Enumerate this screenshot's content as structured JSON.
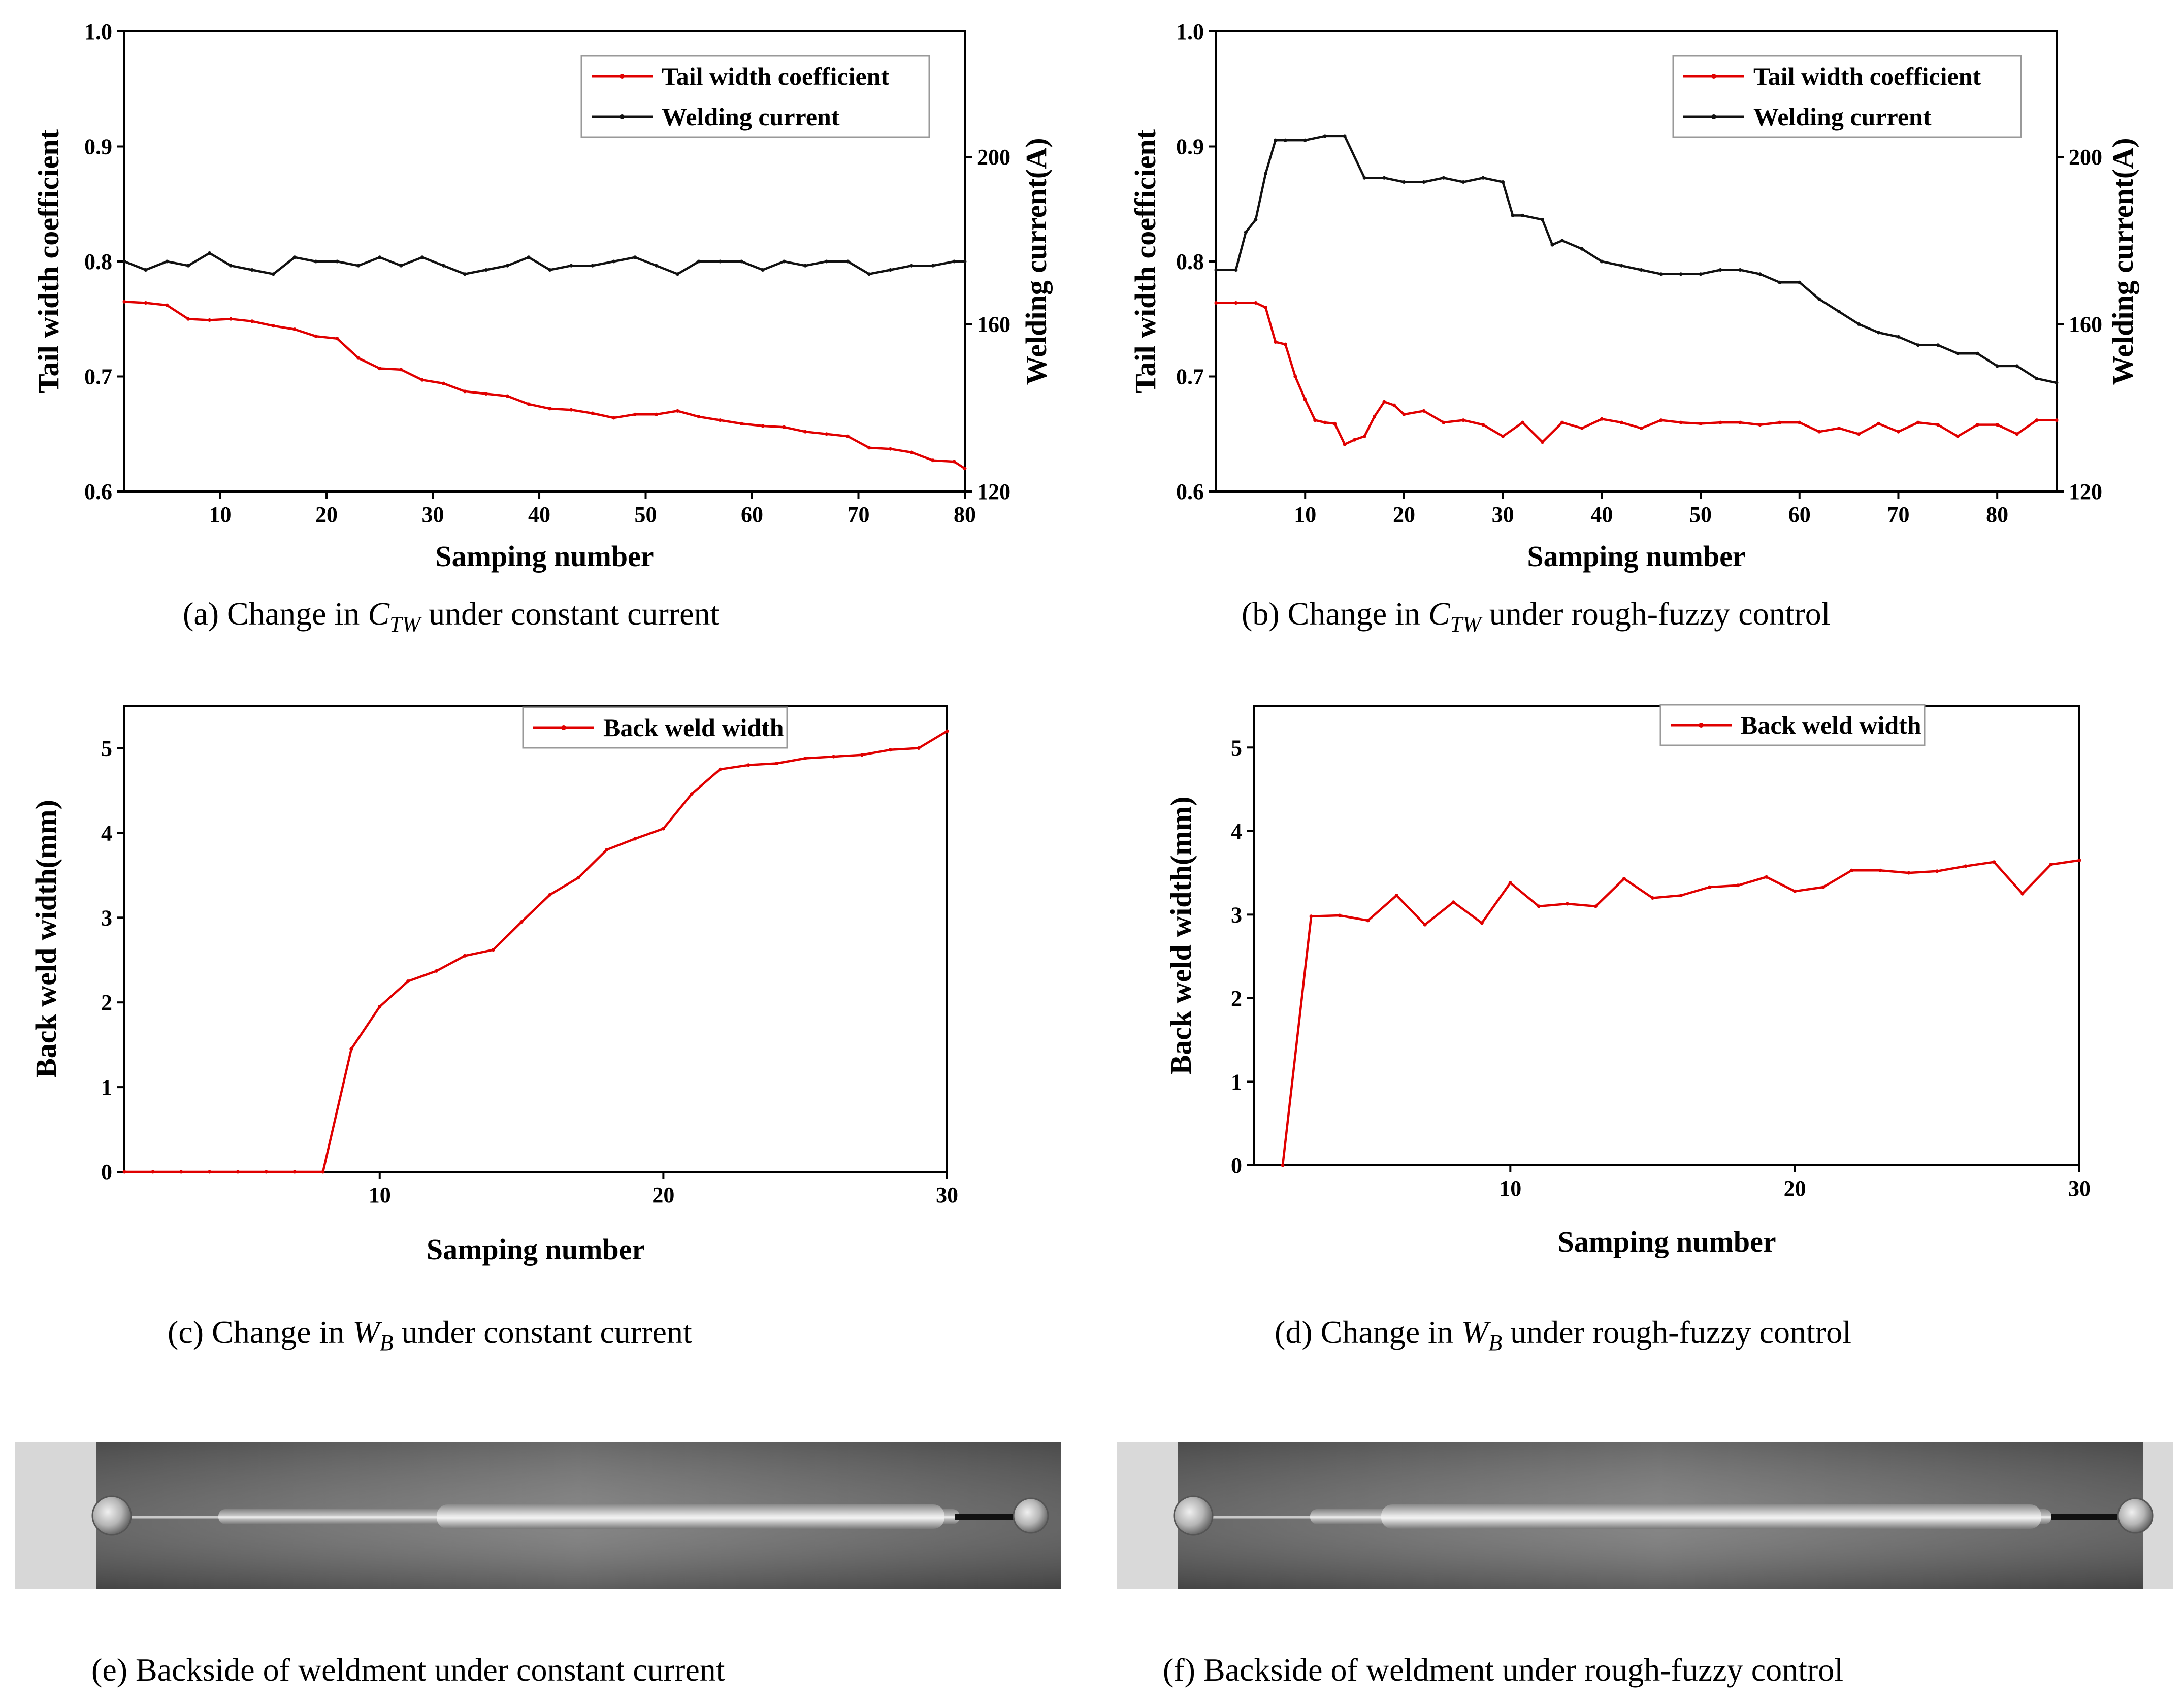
{
  "chart_data": [
    {
      "id": "a",
      "type": "line",
      "caption": {
        "prefix": "(a)  Change in ",
        "symbol": "C",
        "sub": "TW",
        "suffix": "  under constant current"
      },
      "xlabel": "Samping number",
      "ylabel": "Tail width coefficient",
      "y2label": "Welding current(A)",
      "xlim": [
        1,
        80
      ],
      "ylim": [
        0.6,
        1.0
      ],
      "y2lim": [
        120,
        230
      ],
      "xticks": [
        10,
        20,
        30,
        40,
        50,
        60,
        70,
        80
      ],
      "yticks": [
        0.6,
        0.7,
        0.8,
        0.9,
        1.0
      ],
      "yticklabels": [
        "0.6",
        "0.7",
        "0.8",
        "0.9",
        "1.0"
      ],
      "y2ticks": [
        120,
        160,
        200
      ],
      "legend": [
        "Tail width coefficient",
        "Welding current"
      ],
      "series": [
        {
          "name": "Tail width coefficient",
          "axis": "left",
          "color": "#e00000",
          "x": [
            1,
            3,
            5,
            7,
            9,
            11,
            13,
            15,
            17,
            19,
            21,
            23,
            25,
            27,
            29,
            31,
            33,
            35,
            37,
            39,
            41,
            43,
            45,
            47,
            49,
            51,
            53,
            55,
            57,
            59,
            61,
            63,
            65,
            67,
            69,
            71,
            73,
            75,
            77,
            79,
            80
          ],
          "y": [
            0.765,
            0.764,
            0.762,
            0.75,
            0.749,
            0.75,
            0.748,
            0.744,
            0.741,
            0.735,
            0.733,
            0.716,
            0.707,
            0.706,
            0.697,
            0.694,
            0.687,
            0.685,
            0.683,
            0.676,
            0.672,
            0.671,
            0.668,
            0.664,
            0.667,
            0.667,
            0.67,
            0.665,
            0.662,
            0.659,
            0.657,
            0.656,
            0.652,
            0.65,
            0.648,
            0.638,
            0.637,
            0.634,
            0.627,
            0.626,
            0.62
          ]
        },
        {
          "name": "Welding current",
          "axis": "right",
          "color": "#111111",
          "x": [
            1,
            3,
            5,
            7,
            9,
            11,
            13,
            15,
            17,
            19,
            21,
            23,
            25,
            27,
            29,
            31,
            33,
            35,
            37,
            39,
            41,
            43,
            45,
            47,
            49,
            51,
            53,
            55,
            57,
            59,
            61,
            63,
            65,
            67,
            69,
            71,
            73,
            75,
            77,
            79,
            80
          ],
          "y": [
            175,
            173,
            175,
            174,
            177,
            174,
            173,
            172,
            176,
            175,
            175,
            174,
            176,
            174,
            176,
            174,
            172,
            173,
            174,
            176,
            173,
            174,
            174,
            175,
            176,
            174,
            172,
            175,
            175,
            175,
            173,
            175,
            174,
            175,
            175,
            172,
            173,
            174,
            174,
            175,
            175
          ]
        }
      ]
    },
    {
      "id": "b",
      "type": "line",
      "caption": {
        "prefix": "(b)  Change in ",
        "symbol": "C",
        "sub": "TW",
        "suffix": "  under rough-fuzzy control"
      },
      "xlabel": "Samping number",
      "ylabel": "Tail width coefficient",
      "y2label": "Welding current(A)",
      "xlim": [
        1,
        86
      ],
      "ylim": [
        0.6,
        1.0
      ],
      "y2lim": [
        120,
        230
      ],
      "xticks": [
        10,
        20,
        30,
        40,
        50,
        60,
        70,
        80
      ],
      "yticks": [
        0.6,
        0.7,
        0.8,
        0.9,
        1.0
      ],
      "yticklabels": [
        "0.6",
        "0.7",
        "0.8",
        "0.9",
        "1.0"
      ],
      "y2ticks": [
        120,
        160,
        200
      ],
      "legend": [
        "Tail width coefficient",
        "Welding current"
      ],
      "series": [
        {
          "name": "Tail width coefficient",
          "axis": "left",
          "color": "#e00000",
          "x": [
            1,
            3,
            5,
            6,
            7,
            8,
            9,
            10,
            11,
            12,
            13,
            14,
            15,
            16,
            17,
            18,
            19,
            20,
            22,
            24,
            26,
            28,
            30,
            32,
            34,
            36,
            38,
            40,
            42,
            44,
            46,
            48,
            50,
            52,
            54,
            56,
            58,
            60,
            62,
            64,
            66,
            68,
            70,
            72,
            74,
            76,
            78,
            80,
            82,
            84,
            86
          ],
          "y": [
            0.764,
            0.764,
            0.764,
            0.76,
            0.73,
            0.728,
            0.7,
            0.68,
            0.662,
            0.66,
            0.659,
            0.641,
            0.645,
            0.648,
            0.665,
            0.678,
            0.675,
            0.667,
            0.67,
            0.66,
            0.662,
            0.658,
            0.648,
            0.66,
            0.643,
            0.66,
            0.655,
            0.663,
            0.66,
            0.655,
            0.662,
            0.66,
            0.659,
            0.66,
            0.66,
            0.658,
            0.66,
            0.66,
            0.652,
            0.655,
            0.65,
            0.659,
            0.652,
            0.66,
            0.658,
            0.648,
            0.658,
            0.658,
            0.65,
            0.662,
            0.662
          ]
        },
        {
          "name": "Welding current",
          "axis": "right",
          "color": "#111111",
          "x": [
            1,
            3,
            4,
            5,
            6,
            7,
            8,
            10,
            12,
            14,
            16,
            18,
            20,
            22,
            24,
            26,
            28,
            30,
            31,
            32,
            34,
            35,
            36,
            38,
            40,
            42,
            44,
            46,
            48,
            50,
            52,
            54,
            56,
            58,
            60,
            62,
            64,
            66,
            68,
            70,
            72,
            74,
            76,
            78,
            80,
            82,
            84,
            86
          ],
          "y": [
            173,
            173,
            182,
            185,
            196,
            204,
            204,
            204,
            205,
            205,
            195,
            195,
            194,
            194,
            195,
            194,
            195,
            194,
            186,
            186,
            185,
            179,
            180,
            178,
            175,
            174,
            173,
            172,
            172,
            172,
            173,
            173,
            172,
            170,
            170,
            166,
            163,
            160,
            158,
            157,
            155,
            155,
            153,
            153,
            150,
            150,
            147,
            146
          ]
        }
      ]
    },
    {
      "id": "c",
      "type": "line",
      "caption": {
        "prefix": "(c)  Change in ",
        "symbol": "W",
        "sub": "B",
        "suffix": "  under constant current"
      },
      "xlabel": "Samping number",
      "ylabel": "Back weld width(mm)",
      "xlim": [
        1,
        30
      ],
      "ylim": [
        0,
        5.5
      ],
      "xticks": [
        10,
        20,
        30
      ],
      "yticks": [
        0,
        1,
        2,
        3,
        4,
        5
      ],
      "yticklabels": [
        "0",
        "1",
        "2",
        "3",
        "4",
        "5"
      ],
      "legend": [
        "Back weld width"
      ],
      "series": [
        {
          "name": "Back weld width",
          "axis": "left",
          "color": "#e00000",
          "x": [
            1,
            2,
            3,
            4,
            5,
            6,
            7,
            8,
            9,
            10,
            11,
            12,
            13,
            14,
            15,
            16,
            17,
            18,
            19,
            20,
            21,
            22,
            23,
            24,
            25,
            26,
            27,
            28,
            29,
            30
          ],
          "y": [
            0,
            0,
            0,
            0,
            0,
            0,
            0,
            0,
            1.45,
            1.95,
            2.25,
            2.37,
            2.55,
            2.62,
            2.95,
            3.27,
            3.47,
            3.8,
            3.93,
            4.05,
            4.46,
            4.75,
            4.8,
            4.82,
            4.88,
            4.9,
            4.92,
            4.98,
            5.0,
            5.2
          ]
        }
      ]
    },
    {
      "id": "d",
      "type": "line",
      "caption": {
        "prefix": "(d)  Change in ",
        "symbol": "W",
        "sub": "B",
        "suffix": "  under rough-fuzzy control"
      },
      "xlabel": "Samping number",
      "ylabel": "Back weld width(mm)",
      "xlim": [
        1,
        30
      ],
      "ylim": [
        0,
        5.5
      ],
      "xticks": [
        10,
        20,
        30
      ],
      "yticks": [
        0,
        1,
        2,
        3,
        4,
        5
      ],
      "yticklabels": [
        "0",
        "1",
        "2",
        "3",
        "4",
        "5"
      ],
      "legend": [
        "Back weld width"
      ],
      "series": [
        {
          "name": "Back weld width",
          "axis": "left",
          "color": "#e00000",
          "x": [
            2,
            3,
            4,
            5,
            6,
            7,
            8,
            9,
            10,
            11,
            12,
            13,
            14,
            15,
            16,
            17,
            18,
            19,
            20,
            21,
            22,
            23,
            24,
            25,
            26,
            27,
            28,
            29,
            30
          ],
          "y": [
            0,
            2.98,
            2.99,
            2.93,
            3.23,
            2.88,
            3.15,
            2.9,
            3.38,
            3.1,
            3.13,
            3.1,
            3.43,
            3.2,
            3.23,
            3.33,
            3.35,
            3.45,
            3.28,
            3.33,
            3.53,
            3.53,
            3.5,
            3.52,
            3.58,
            3.63,
            3.25,
            3.6,
            3.65
          ]
        }
      ]
    }
  ],
  "photos": [
    {
      "id": "e",
      "caption": "(e)  Backside of weldment under constant current"
    },
    {
      "id": "f",
      "caption": "(f)  Backside of weldment under rough-fuzzy control"
    }
  ],
  "colors": {
    "red_series": "#e00000",
    "black_series": "#111111"
  }
}
